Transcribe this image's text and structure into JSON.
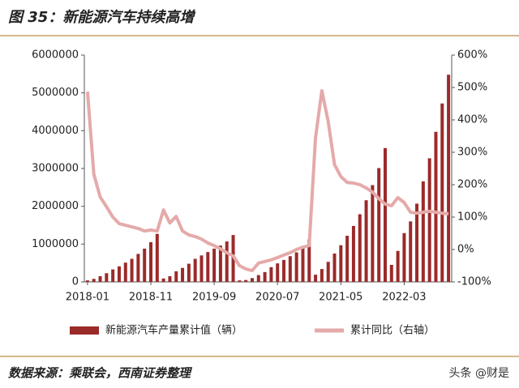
{
  "chart_data": {
    "type": "bar_line",
    "title": "图 35：新能源汽车持续高增",
    "source": "数据来源：乘联会，西南证券整理",
    "watermark": "头条 @财是",
    "categories": [
      "2018-01",
      null,
      null,
      null,
      null,
      null,
      null,
      null,
      null,
      null,
      "2018-11",
      null,
      null,
      null,
      null,
      null,
      null,
      null,
      null,
      null,
      "2019-09",
      null,
      null,
      null,
      null,
      null,
      null,
      null,
      null,
      null,
      "2020-07",
      null,
      null,
      null,
      null,
      null,
      null,
      null,
      null,
      null,
      "2021-05",
      null,
      null,
      null,
      null,
      null,
      null,
      null,
      null,
      null,
      "2022-03",
      null,
      null,
      null,
      null,
      null,
      null,
      null
    ],
    "series": [
      {
        "name": "新能源汽车产量累计值（辆）",
        "color": "#9b2a2a",
        "axis": "y",
        "values": [
          40000,
          80000,
          150000,
          230000,
          330000,
          410000,
          510000,
          610000,
          740000,
          880000,
          1050000,
          1270000,
          90000,
          150000,
          280000,
          370000,
          480000,
          610000,
          700000,
          790000,
          880000,
          960000,
          1070000,
          1240000,
          40000,
          50000,
          100000,
          180000,
          260000,
          390000,
          490000,
          580000,
          680000,
          780000,
          950000,
          1120000,
          190000,
          340000,
          530000,
          750000,
          970000,
          1220000,
          1480000,
          1790000,
          2160000,
          2560000,
          3010000,
          3540000,
          450000,
          820000,
          1290000,
          1600000,
          2070000,
          2660000,
          3270000,
          3970000,
          4720000,
          5480000
        ]
      },
      {
        "name": "累计同比（右轴）",
        "color": "#e4aaa9",
        "axis": "y2",
        "values": [
          487,
          232,
          162,
          132,
          100,
          80,
          75,
          70,
          65,
          57,
          60,
          57,
          122,
          82,
          102,
          57,
          45,
          40,
          32,
          20,
          12,
          2,
          -10,
          -20,
          -50,
          -60,
          -65,
          -42,
          -37,
          -32,
          -25,
          -17,
          -10,
          0,
          7,
          12,
          345,
          490,
          395,
          262,
          225,
          207,
          205,
          200,
          190,
          177,
          157,
          140,
          135,
          160,
          145,
          115,
          112,
          115,
          118,
          115,
          112,
          110
        ]
      }
    ],
    "ylim": [
      0,
      6000000
    ],
    "yticks": [
      0,
      1000000,
      2000000,
      3000000,
      4000000,
      5000000,
      6000000
    ],
    "y2lim": [
      -100,
      600
    ],
    "y2ticks": [
      {
        "value": -100,
        "label": "-100%"
      },
      {
        "value": 0,
        "label": "0%"
      },
      {
        "value": 100,
        "label": "100%"
      },
      {
        "value": 200,
        "label": "200%"
      },
      {
        "value": 300,
        "label": "300%"
      },
      {
        "value": 400,
        "label": "400%"
      },
      {
        "value": 500,
        "label": "500%"
      },
      {
        "value": 600,
        "label": "600%"
      }
    ],
    "legend": "bottom"
  }
}
